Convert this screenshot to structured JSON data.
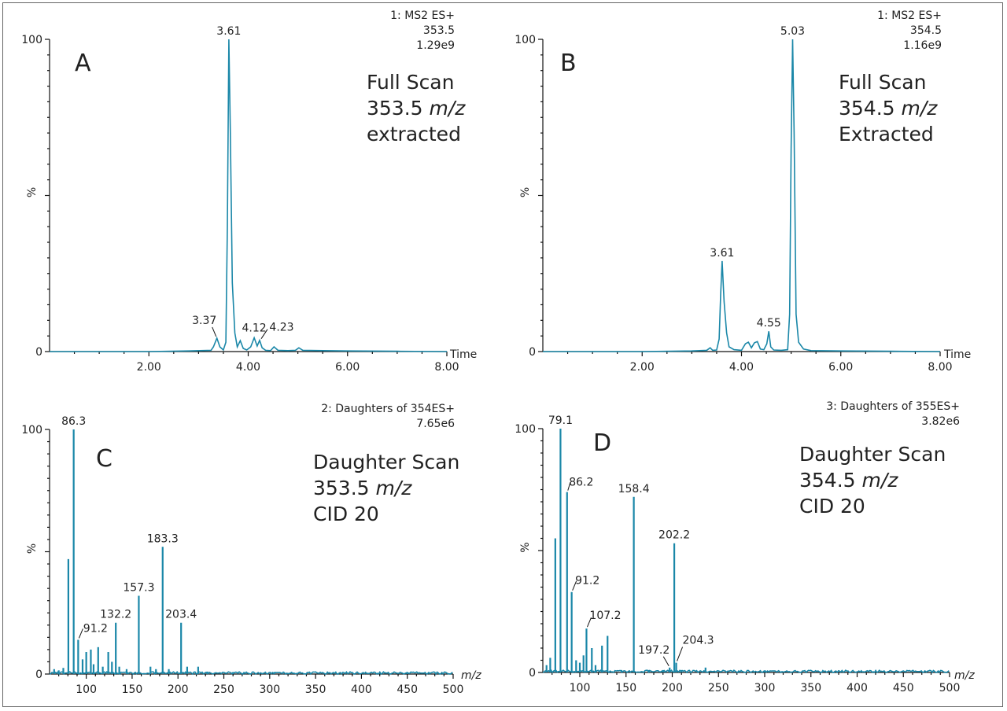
{
  "chart_data": [
    {
      "type": "line",
      "panel_letter": "A",
      "header": [
        "1: MS2 ES+",
        "353.5",
        "1.29e9"
      ],
      "note": [
        [
          "Full Scan"
        ],
        [
          "353.5 ",
          "m/z"
        ],
        [
          "extracted"
        ]
      ],
      "ylabel": "%",
      "xlabel": "Time",
      "xlim": [
        0,
        8.0
      ],
      "ylim": [
        0,
        100
      ],
      "xticks": [
        2.0,
        4.0,
        6.0,
        8.0
      ],
      "xtick_labels": [
        "2.00",
        "4.00",
        "6.00",
        "8.00"
      ],
      "ytick_labels": [
        "100",
        "%",
        "0"
      ],
      "x": [
        0.0,
        1.0,
        2.0,
        2.8,
        3.25,
        3.3,
        3.37,
        3.43,
        3.5,
        3.55,
        3.58,
        3.61,
        3.64,
        3.68,
        3.73,
        3.78,
        3.84,
        3.9,
        3.97,
        4.05,
        4.12,
        4.18,
        4.23,
        4.28,
        4.35,
        4.45,
        4.52,
        4.6,
        4.8,
        4.95,
        5.02,
        5.1,
        5.5,
        6.0,
        7.0,
        8.0
      ],
      "y": [
        0,
        0,
        0,
        0.2,
        0.4,
        1.5,
        4.3,
        1.5,
        0.5,
        3,
        40,
        100,
        70,
        22,
        6,
        1.5,
        3.5,
        1.0,
        0.5,
        1.5,
        4.4,
        1.8,
        3.6,
        1.2,
        0.4,
        0.3,
        1.5,
        0.4,
        0.3,
        0.4,
        1.2,
        0.4,
        0.3,
        0.2,
        0.1,
        0
      ],
      "peak_labels": [
        {
          "x": 3.61,
          "y": 100,
          "label": "3.61"
        },
        {
          "x": 3.37,
          "y": 4.3,
          "label": "3.37"
        },
        {
          "x": 4.12,
          "y": 4.4,
          "label": "4.12"
        },
        {
          "x": 4.23,
          "y": 3.6,
          "label": "4.23"
        }
      ],
      "color": "#1a87a8"
    },
    {
      "type": "line",
      "panel_letter": "B",
      "header": [
        "1: MS2 ES+",
        "354.5",
        "1.16e9"
      ],
      "note": [
        [
          "Full  Scan"
        ],
        [
          "354.5 ",
          "m/z"
        ],
        [
          "Extracted"
        ]
      ],
      "ylabel": "%",
      "xlabel": "Time",
      "xlim": [
        0,
        8.0
      ],
      "ylim": [
        0,
        100
      ],
      "xticks": [
        2.0,
        4.0,
        6.0,
        8.0
      ],
      "xtick_labels": [
        "2.00",
        "4.00",
        "6.00",
        "8.00"
      ],
      "ytick_labels": [
        "100",
        "%",
        "0"
      ],
      "x": [
        0.0,
        2.0,
        3.0,
        3.3,
        3.37,
        3.42,
        3.5,
        3.55,
        3.58,
        3.61,
        3.65,
        3.7,
        3.75,
        3.85,
        4.0,
        4.08,
        4.14,
        4.2,
        4.26,
        4.32,
        4.38,
        4.45,
        4.51,
        4.55,
        4.59,
        4.65,
        4.8,
        4.93,
        4.97,
        5.0,
        5.03,
        5.06,
        5.1,
        5.15,
        5.25,
        5.4,
        6.0,
        7.0,
        8.0
      ],
      "y": [
        0,
        0,
        0.2,
        0.4,
        1.2,
        0.4,
        0.5,
        4,
        18,
        29,
        16,
        6,
        1.5,
        0.6,
        0.4,
        2.5,
        3.0,
        1.2,
        2.8,
        3.2,
        0.8,
        0.6,
        2.5,
        6.5,
        1.5,
        0.5,
        0.4,
        0.6,
        12,
        65,
        100,
        70,
        12,
        3,
        0.8,
        0.3,
        0.2,
        0.1,
        0
      ],
      "peak_labels": [
        {
          "x": 5.03,
          "y": 100,
          "label": "5.03"
        },
        {
          "x": 3.61,
          "y": 29,
          "label": "3.61"
        },
        {
          "x": 4.55,
          "y": 6.5,
          "label": "4.55"
        }
      ],
      "color": "#1a87a8"
    },
    {
      "type": "bar",
      "panel_letter": "C",
      "header": [
        "2: Daughters of 354ES+",
        "7.65e6"
      ],
      "note": [
        [
          "Daughter Scan"
        ],
        [
          "353.5 ",
          "m/z"
        ],
        [
          "CID 20"
        ]
      ],
      "ylabel": "%",
      "xlabel": "m/z",
      "xlim": [
        60,
        500
      ],
      "ylim": [
        0,
        100
      ],
      "xticks": [
        100,
        150,
        200,
        250,
        300,
        350,
        400,
        450,
        500
      ],
      "xtick_labels": [
        "100",
        "150",
        "200",
        "250",
        "300",
        "350",
        "400",
        "450",
        "500"
      ],
      "ytick_labels": [
        "100",
        "%",
        "0"
      ],
      "peaks": [
        {
          "x": 65,
          "y": 2
        },
        {
          "x": 70,
          "y": 1.5
        },
        {
          "x": 75,
          "y": 2.5
        },
        {
          "x": 80.5,
          "y": 47
        },
        {
          "x": 86.3,
          "y": 100
        },
        {
          "x": 91.2,
          "y": 14
        },
        {
          "x": 96,
          "y": 6
        },
        {
          "x": 100,
          "y": 9
        },
        {
          "x": 105,
          "y": 10
        },
        {
          "x": 108,
          "y": 4
        },
        {
          "x": 113,
          "y": 11
        },
        {
          "x": 118,
          "y": 3
        },
        {
          "x": 124,
          "y": 9
        },
        {
          "x": 128,
          "y": 5
        },
        {
          "x": 132.2,
          "y": 21
        },
        {
          "x": 136,
          "y": 3
        },
        {
          "x": 144,
          "y": 2
        },
        {
          "x": 157.3,
          "y": 32
        },
        {
          "x": 170,
          "y": 3
        },
        {
          "x": 176,
          "y": 2
        },
        {
          "x": 183.3,
          "y": 52
        },
        {
          "x": 190,
          "y": 2
        },
        {
          "x": 203.4,
          "y": 21
        },
        {
          "x": 210,
          "y": 3
        },
        {
          "x": 222,
          "y": 3
        },
        {
          "x": 232,
          "y": 1
        },
        {
          "x": 260,
          "y": 0.8
        },
        {
          "x": 305,
          "y": 0.8
        },
        {
          "x": 330,
          "y": 0.5
        },
        {
          "x": 450,
          "y": 0.5
        }
      ],
      "peak_labels": [
        {
          "x": 86.3,
          "y": 100,
          "label": "86.3"
        },
        {
          "x": 91.2,
          "y": 14,
          "label": "91.2"
        },
        {
          "x": 132.2,
          "y": 21,
          "label": "132.2"
        },
        {
          "x": 157.3,
          "y": 32,
          "label": "157.3"
        },
        {
          "x": 183.3,
          "y": 52,
          "label": "183.3"
        },
        {
          "x": 203.4,
          "y": 21,
          "label": "203.4"
        }
      ],
      "color": "#1a87a8"
    },
    {
      "type": "bar",
      "panel_letter": "D",
      "header": [
        "3: Daughters of 355ES+",
        "3.82e6"
      ],
      "note": [
        [
          "Daughter Scan"
        ],
        [
          "354.5 ",
          "m/z"
        ],
        [
          "CID 20"
        ]
      ],
      "ylabel": "%",
      "xlabel": "m/z",
      "xlim": [
        60,
        500
      ],
      "ylim": [
        0,
        100
      ],
      "xticks": [
        100,
        150,
        200,
        250,
        300,
        350,
        400,
        450,
        500
      ],
      "xtick_labels": [
        "100",
        "150",
        "200",
        "250",
        "300",
        "350",
        "400",
        "450",
        "500"
      ],
      "ytick_labels": [
        "100",
        "%",
        "0"
      ],
      "peaks": [
        {
          "x": 64,
          "y": 3
        },
        {
          "x": 68,
          "y": 6
        },
        {
          "x": 73.5,
          "y": 55
        },
        {
          "x": 79.1,
          "y": 100
        },
        {
          "x": 86.2,
          "y": 74
        },
        {
          "x": 91.2,
          "y": 33
        },
        {
          "x": 96,
          "y": 5
        },
        {
          "x": 100,
          "y": 4
        },
        {
          "x": 104,
          "y": 7
        },
        {
          "x": 107.2,
          "y": 18
        },
        {
          "x": 113,
          "y": 10
        },
        {
          "x": 117,
          "y": 3
        },
        {
          "x": 124,
          "y": 11
        },
        {
          "x": 130,
          "y": 15
        },
        {
          "x": 145,
          "y": 1
        },
        {
          "x": 158.4,
          "y": 72
        },
        {
          "x": 175,
          "y": 1
        },
        {
          "x": 190,
          "y": 1
        },
        {
          "x": 197.2,
          "y": 2
        },
        {
          "x": 202.2,
          "y": 53
        },
        {
          "x": 204.3,
          "y": 4
        },
        {
          "x": 210,
          "y": 1
        },
        {
          "x": 236,
          "y": 2
        },
        {
          "x": 300,
          "y": 0.6
        },
        {
          "x": 400,
          "y": 0.5
        }
      ],
      "peak_labels": [
        {
          "x": 79.1,
          "y": 100,
          "label": "79.1"
        },
        {
          "x": 86.2,
          "y": 74,
          "label": "86.2"
        },
        {
          "x": 91.2,
          "y": 33,
          "label": "91.2"
        },
        {
          "x": 107.2,
          "y": 18,
          "label": "107.2"
        },
        {
          "x": 158.4,
          "y": 72,
          "label": "158.4"
        },
        {
          "x": 197.2,
          "y": 2,
          "label": "197.2"
        },
        {
          "x": 202.2,
          "y": 53,
          "label": "202.2"
        },
        {
          "x": 204.3,
          "y": 4,
          "label": "204.3"
        }
      ],
      "color": "#1a87a8"
    }
  ]
}
